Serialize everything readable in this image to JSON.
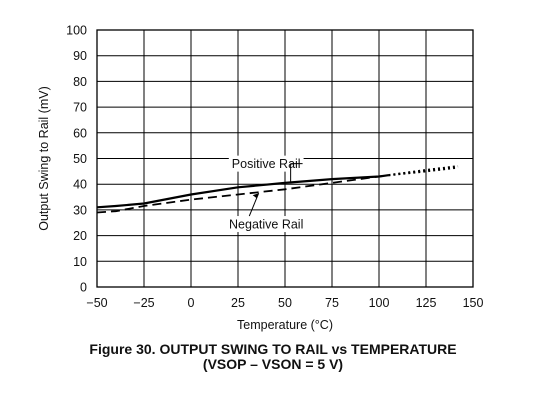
{
  "chart_data": {
    "type": "line",
    "title": "Figure 30. OUTPUT SWING TO RAIL vs TEMPERATURE",
    "subtitle": "(VSOP – VSON = 5 V)",
    "xlabel": "Temperature (°C)",
    "ylabel": "Output Swing to Rail (mV)",
    "xlim": [
      -50,
      150
    ],
    "ylim": [
      0,
      100
    ],
    "xticks": [
      "−50",
      "−25",
      "0",
      "25",
      "50",
      "75",
      "100",
      "125",
      "150"
    ],
    "xtick_values": [
      -50,
      -25,
      0,
      25,
      50,
      75,
      100,
      125,
      150
    ],
    "yticks": [
      "0",
      "10",
      "20",
      "30",
      "40",
      "50",
      "60",
      "70",
      "80",
      "90",
      "100"
    ],
    "ytick_values": [
      0,
      10,
      20,
      30,
      40,
      50,
      60,
      70,
      80,
      90,
      100
    ],
    "grid": true,
    "series": [
      {
        "name": "Positive Rail",
        "style": "solid",
        "color": "#000000",
        "x": [
          -50,
          -40,
          -25,
          0,
          25,
          50,
          75,
          100,
          105
        ],
        "y": [
          31,
          31.5,
          32.5,
          36,
          38.8,
          40.5,
          42,
          43,
          43.5
        ]
      },
      {
        "name": "Positive Rail (extrapolated)",
        "style": "dotted",
        "color": "#000000",
        "x": [
          105,
          125,
          142
        ],
        "y": [
          43.5,
          45.5,
          47
        ]
      },
      {
        "name": "Negative Rail",
        "style": "dashed",
        "color": "#000000",
        "x": [
          -50,
          -40,
          -25,
          0,
          25,
          50,
          75,
          100,
          105
        ],
        "y": [
          29,
          29.5,
          31.5,
          34,
          36,
          38,
          40.5,
          43,
          43.5
        ]
      },
      {
        "name": "Negative Rail (extrapolated)",
        "style": "dotted",
        "color": "#000000",
        "x": [
          105,
          125,
          142
        ],
        "y": [
          43.5,
          45,
          46.5
        ]
      }
    ],
    "annotations": [
      {
        "text": "Positive Rail",
        "x": 40,
        "y": 48
      },
      {
        "text": "Negative Rail",
        "x": 40,
        "y": 24.5
      }
    ]
  }
}
